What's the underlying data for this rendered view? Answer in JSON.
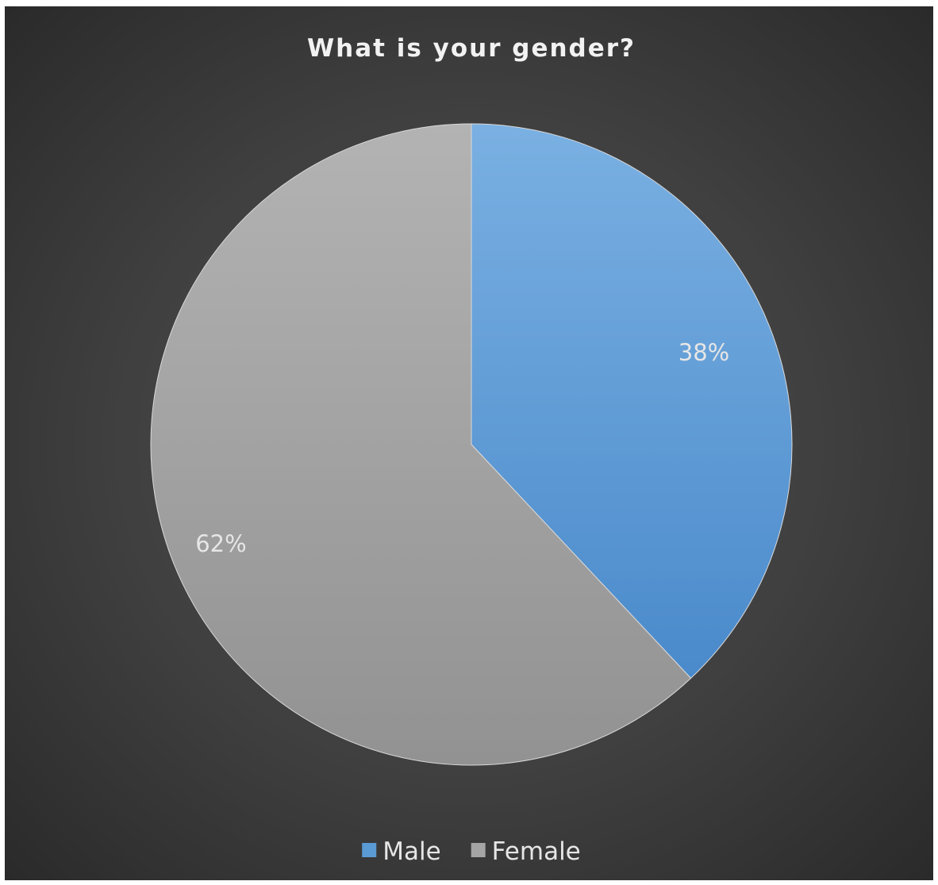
{
  "chart_data": {
    "type": "pie",
    "title": "What is your gender?",
    "categories": [
      "Male",
      "Female"
    ],
    "values": [
      38,
      62
    ],
    "data_labels": [
      "38%",
      "62%"
    ],
    "colors": [
      "#5b9bd5",
      "#a5a5a5"
    ],
    "start_angle": "12 o'clock",
    "direction": "clockwise",
    "legend": {
      "position": "bottom",
      "entries": [
        "Male",
        "Female"
      ]
    }
  }
}
